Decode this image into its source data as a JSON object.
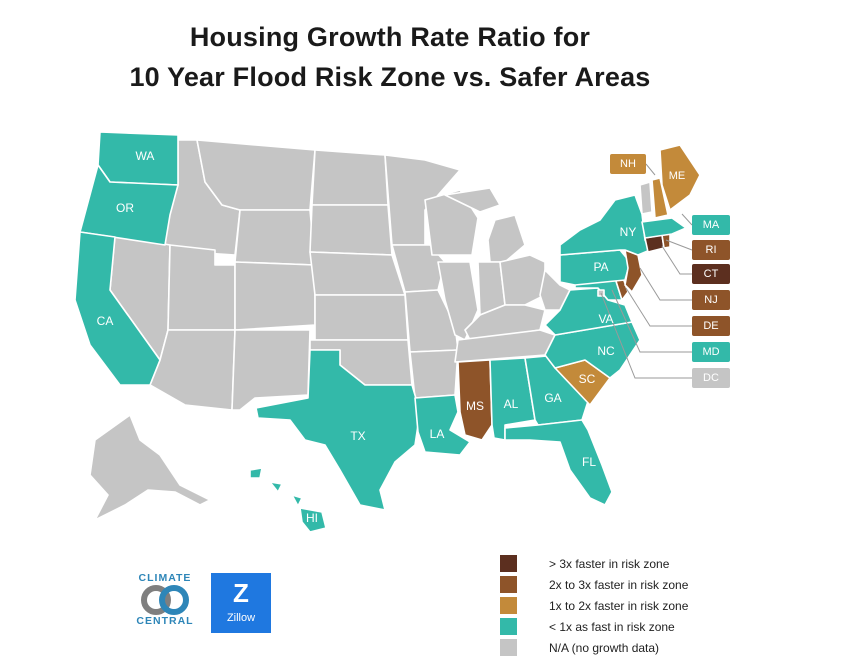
{
  "title": {
    "line1": "Housing Growth Rate Ratio for",
    "line2": "10 Year Flood Risk Zone vs. Safer Areas"
  },
  "colors": {
    "over3x": "#5c2f1f",
    "2to3x": "#8e5429",
    "1to2x": "#c38a3a",
    "under1x": "#33b9a9",
    "na": "#c5c5c5"
  },
  "legend": [
    {
      "label": "> 3x faster in risk zone",
      "category": "over3x"
    },
    {
      "label": "2x to 3x faster in risk zone",
      "category": "2to3x"
    },
    {
      "label": "1x to 2x faster in risk zone",
      "category": "1to2x"
    },
    {
      "label": "< 1x as fast in risk zone",
      "category": "under1x"
    },
    {
      "label": "N/A (no growth data)",
      "category": "na"
    }
  ],
  "states": {
    "WA": "under1x",
    "OR": "under1x",
    "CA": "under1x",
    "TX": "under1x",
    "LA": "under1x",
    "MS": "2to3x",
    "AL": "under1x",
    "GA": "under1x",
    "FL": "under1x",
    "SC": "1to2x",
    "NC": "under1x",
    "VA": "under1x",
    "PA": "under1x",
    "NY": "under1x",
    "HI": "under1x",
    "MA": "under1x",
    "RI": "2to3x",
    "CT": "over3x",
    "NJ": "2to3x",
    "DE": "2to3x",
    "MD": "under1x",
    "DC": "na",
    "NH": "1to2x",
    "ME": "1to2x"
  },
  "map_labels": {
    "WA": "WA",
    "OR": "OR",
    "CA": "CA",
    "TX": "TX",
    "LA": "LA",
    "MS": "MS",
    "AL": "AL",
    "GA": "GA",
    "FL": "FL",
    "SC": "SC",
    "NC": "NC",
    "VA": "VA",
    "PA": "PA",
    "NY": "NY",
    "HI": "HI"
  },
  "callouts": {
    "NH": "NH",
    "ME": "ME",
    "MA": "MA",
    "RI": "RI",
    "CT": "CT",
    "NJ": "NJ",
    "DE": "DE",
    "MD": "MD",
    "DC": "DC"
  },
  "logos": {
    "climate_central_line1": "CLIMATE",
    "climate_central_line2": "CENTRAL",
    "zillow_mark": "Z",
    "zillow_name": "Zillow"
  }
}
